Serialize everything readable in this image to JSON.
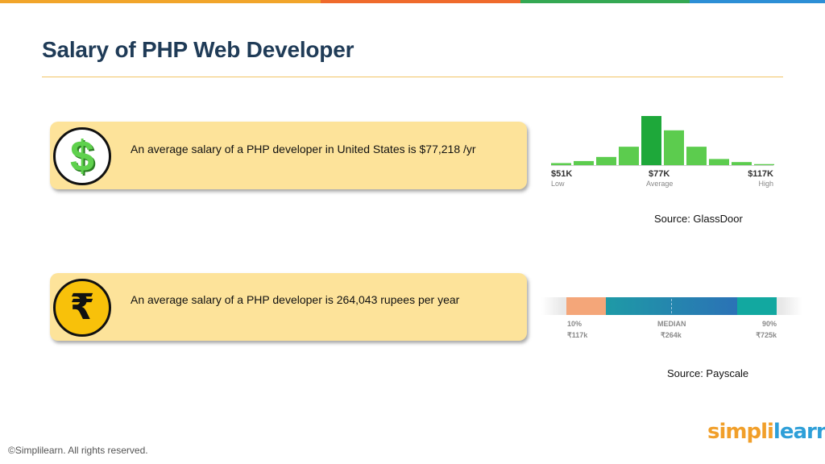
{
  "slide": {
    "title": "Salary of PHP Web Developer"
  },
  "colors": {
    "top_bar": [
      "#f1a52a",
      "#ef6a2c",
      "#34a853",
      "#2d8fd6"
    ],
    "card": "#fde39a",
    "accent_green": "#2fb44a"
  },
  "usa": {
    "icon": "dollar-icon",
    "glyph": "$",
    "text": "An average salary of a PHP developer in United States is $77,218 /yr",
    "chart": {
      "type": "bar",
      "values": [
        1,
        2,
        4,
        9,
        24,
        17,
        9,
        3,
        1.5,
        0.5
      ],
      "highlight_index": 4,
      "low_value": "$51K",
      "low_label": "Low",
      "avg_value": "$77K",
      "avg_label": "Average",
      "high_value": "$117K",
      "high_label": "High"
    },
    "source": "Source: GlassDoor"
  },
  "india": {
    "icon": "rupee-icon",
    "glyph": "₹",
    "text": "An average salary of a PHP developer is 264,043 rupees per year",
    "range": {
      "p10_label": "10%",
      "p10_value": "₹117k",
      "median_label": "MEDIAN",
      "median_value": "₹264k",
      "p90_label": "90%",
      "p90_value": "₹725k"
    },
    "source": "Source: Payscale"
  },
  "footer": {
    "copyright": "©Simplilearn. All rights reserved.",
    "logo_simpli": "simpli",
    "logo_learn": "learn"
  }
}
